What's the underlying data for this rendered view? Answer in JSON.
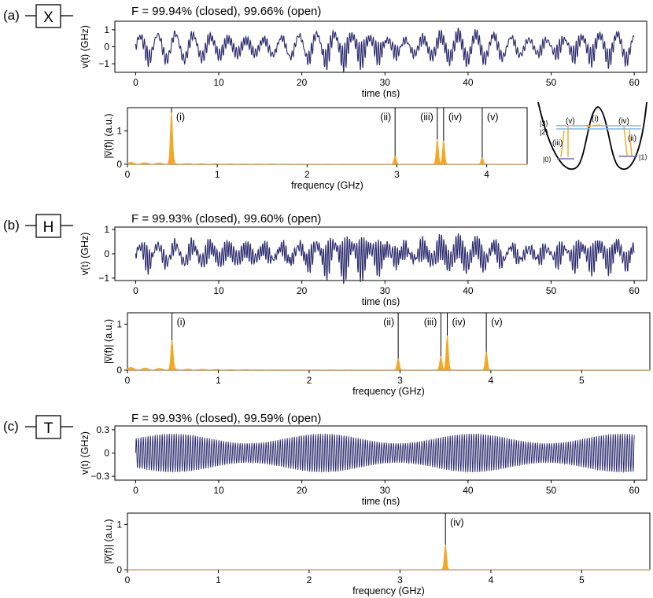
{
  "colors": {
    "signal": "#2b2a6e",
    "spectrum": "#f5a623",
    "axis": "#000000"
  },
  "shared": {
    "time_xlabel": "time (ns)",
    "time_ylabel": "v(t) (GHz)",
    "freq_xlabel": "frequency (GHz)",
    "freq_ylabel": "|v̅(f)|  (a.u.)"
  },
  "panels": [
    {
      "label": "(a)",
      "gate": "X",
      "fidelity": "F = 99.94% (closed), 99.66% (open)"
    },
    {
      "label": "(b)",
      "gate": "H",
      "fidelity": "F = 99.93% (closed), 99.60% (open)"
    },
    {
      "label": "(c)",
      "gate": "T",
      "fidelity": "F = 99.93% (closed), 99.59% (open)"
    }
  ],
  "inset": {
    "levels": [
      "|3⟩",
      "|2⟩",
      "|0⟩",
      "|1⟩"
    ],
    "transitions": [
      "(v)",
      "(i)",
      "(iv)",
      "(iii)",
      "(ii)"
    ]
  },
  "chart_data": [
    {
      "type": "line",
      "x_range": [
        0,
        60
      ],
      "xlim": [
        -2.5,
        61.5
      ],
      "ylim": [
        -1.5,
        1.5
      ],
      "xticks": [
        0,
        10,
        20,
        30,
        40,
        50,
        60
      ],
      "yticks": [
        -1,
        0,
        1
      ],
      "ytick_labels": [
        "−1",
        "0",
        "1"
      ],
      "xlabel": "time (ns)",
      "ylabel": "v(t) (GHz)",
      "title": "F = 99.94% (closed), 99.66% (open)",
      "description_of_series": "oscillating control signal, amplitude up to about 1.3 GHz",
      "components": [
        {
          "freq": 0.47,
          "amp": 0.75
        },
        {
          "freq": 2.98,
          "amp": 0.22
        },
        {
          "freq": 3.45,
          "amp": 0.3
        },
        {
          "freq": 3.52,
          "amp": 0.26
        },
        {
          "freq": 3.95,
          "amp": 0.12
        }
      ]
    },
    {
      "type": "area",
      "xlim": [
        0,
        4.45
      ],
      "ylim": [
        0,
        1.7
      ],
      "xticks": [
        0,
        1,
        2,
        3,
        4
      ],
      "yticks": [
        0,
        1
      ],
      "xlabel": "frequency (GHz)",
      "ylabel": "|v̅(f)|  (a.u.)",
      "peaks": [
        {
          "label": "(i)",
          "f": 0.49,
          "height": 1.55
        },
        {
          "label": "(ii)",
          "f": 2.98,
          "height": 0.25
        },
        {
          "label": "(iii)",
          "f": 3.45,
          "height": 0.75
        },
        {
          "label": "(iv)",
          "f": 3.52,
          "height": 0.7
        },
        {
          "label": "(v)",
          "f": 3.95,
          "height": 0.2
        }
      ]
    },
    {
      "type": "line",
      "xlim": [
        -2.5,
        61.5
      ],
      "ylim": [
        -1.1,
        1.1
      ],
      "xticks": [
        0,
        10,
        20,
        30,
        40,
        50,
        60
      ],
      "yticks": [
        -1,
        0,
        1
      ],
      "ytick_labels": [
        "−1",
        "0",
        "1"
      ],
      "xlabel": "time (ns)",
      "ylabel": "v(t) (GHz)",
      "title": "F = 99.93% (closed), 99.60% (open)",
      "components": [
        {
          "freq": 0.47,
          "amp": 0.35
        },
        {
          "freq": 2.98,
          "amp": 0.2
        },
        {
          "freq": 3.45,
          "amp": 0.25
        },
        {
          "freq": 3.52,
          "amp": 0.35
        },
        {
          "freq": 3.95,
          "amp": 0.22
        }
      ]
    },
    {
      "type": "area",
      "xlim": [
        0,
        5.75
      ],
      "ylim": [
        0,
        1.25
      ],
      "xticks": [
        0,
        1,
        2,
        3,
        4,
        5
      ],
      "yticks": [
        0,
        1
      ],
      "xlabel": "frequency (GHz)",
      "ylabel": "|v̅(f)|  (a.u.)",
      "peaks": [
        {
          "label": "(i)",
          "f": 0.49,
          "height": 0.65
        },
        {
          "label": "(ii)",
          "f": 2.98,
          "height": 0.25
        },
        {
          "label": "(iii)",
          "f": 3.45,
          "height": 0.3
        },
        {
          "label": "(iv)",
          "f": 3.52,
          "height": 0.75
        },
        {
          "label": "(v)",
          "f": 3.95,
          "height": 0.4
        }
      ]
    },
    {
      "type": "line",
      "xlim": [
        -2.5,
        61.5
      ],
      "ylim": [
        -0.35,
        0.35
      ],
      "xticks": [
        0,
        10,
        20,
        30,
        40,
        50,
        60
      ],
      "yticks": [
        -0.3,
        0,
        0.3
      ],
      "ytick_labels": [
        "−0.3",
        "0",
        "0.3"
      ],
      "xlabel": "time (ns)",
      "ylabel": "v(t) (GHz)",
      "title": "F = 99.93% (closed), 99.59% (open)",
      "components": [
        {
          "freq": 3.52,
          "amp": 0.25
        }
      ]
    },
    {
      "type": "area",
      "xlim": [
        0,
        5.75
      ],
      "ylim": [
        0,
        1.25
      ],
      "xticks": [
        0,
        1,
        2,
        3,
        4,
        5
      ],
      "yticks": [
        0,
        1
      ],
      "xlabel": "frequency (GHz)",
      "ylabel": "|v̅(f)|  (a.u.)",
      "peaks": [
        {
          "label": "(iv)",
          "f": 3.5,
          "height": 0.55
        }
      ]
    }
  ]
}
